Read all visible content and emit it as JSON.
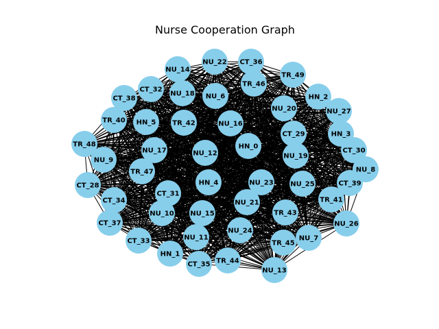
{
  "title": "Nurse Cooperation Graph",
  "colors": {
    "node_fill": "#87CEEB",
    "edge": "#000000",
    "label": "#000000",
    "background": "#ffffff"
  },
  "nodes": [
    "NU_22",
    "CT_36",
    "NU_14",
    "TR_49",
    "TR_46",
    "CT_32",
    "NU_18",
    "CT_38",
    "NU_6",
    "HN_2",
    "NU_20",
    "NU_27",
    "TR_40",
    "HN_5",
    "TR_42",
    "NU_16",
    "CT_29",
    "HN_3",
    "TR_48",
    "NU_17",
    "NU_12",
    "HN_0",
    "CT_30",
    "NU_19",
    "NU_9",
    "NU_8",
    "TR_47",
    "HN_4",
    "NU_23",
    "NU_25",
    "CT_28",
    "CT_39",
    "CT_31",
    "TR_41",
    "CT_34",
    "NU_21",
    "NU_10",
    "NU_15",
    "TR_43",
    "NU_26",
    "CT_37",
    "NU_24",
    "NU_7",
    "NU_11",
    "CT_33",
    "TR_45",
    "HN_1",
    "CT_35",
    "TR_44",
    "NU_13"
  ]
}
